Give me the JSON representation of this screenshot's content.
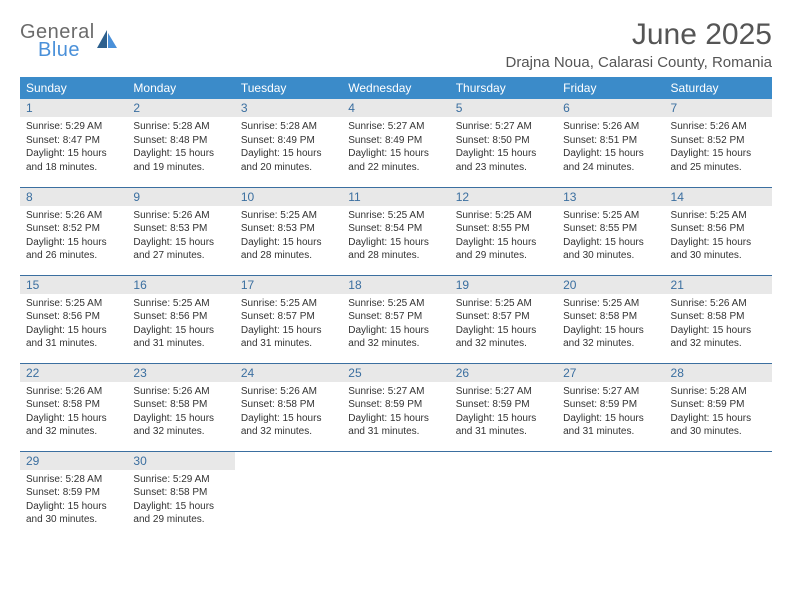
{
  "logo": {
    "word1": "General",
    "word2": "Blue"
  },
  "title": "June 2025",
  "location": "Drajna Noua, Calarasi County, Romania",
  "headerColor": "#3b8bc9",
  "ruleColor": "#3b6fa0",
  "dayNumBg": "#e8e8e8",
  "dayNames": [
    "Sunday",
    "Monday",
    "Tuesday",
    "Wednesday",
    "Thursday",
    "Friday",
    "Saturday"
  ],
  "weeks": [
    [
      {
        "n": "1",
        "sr": "Sunrise: 5:29 AM",
        "ss": "Sunset: 8:47 PM",
        "d1": "Daylight: 15 hours",
        "d2": "and 18 minutes."
      },
      {
        "n": "2",
        "sr": "Sunrise: 5:28 AM",
        "ss": "Sunset: 8:48 PM",
        "d1": "Daylight: 15 hours",
        "d2": "and 19 minutes."
      },
      {
        "n": "3",
        "sr": "Sunrise: 5:28 AM",
        "ss": "Sunset: 8:49 PM",
        "d1": "Daylight: 15 hours",
        "d2": "and 20 minutes."
      },
      {
        "n": "4",
        "sr": "Sunrise: 5:27 AM",
        "ss": "Sunset: 8:49 PM",
        "d1": "Daylight: 15 hours",
        "d2": "and 22 minutes."
      },
      {
        "n": "5",
        "sr": "Sunrise: 5:27 AM",
        "ss": "Sunset: 8:50 PM",
        "d1": "Daylight: 15 hours",
        "d2": "and 23 minutes."
      },
      {
        "n": "6",
        "sr": "Sunrise: 5:26 AM",
        "ss": "Sunset: 8:51 PM",
        "d1": "Daylight: 15 hours",
        "d2": "and 24 minutes."
      },
      {
        "n": "7",
        "sr": "Sunrise: 5:26 AM",
        "ss": "Sunset: 8:52 PM",
        "d1": "Daylight: 15 hours",
        "d2": "and 25 minutes."
      }
    ],
    [
      {
        "n": "8",
        "sr": "Sunrise: 5:26 AM",
        "ss": "Sunset: 8:52 PM",
        "d1": "Daylight: 15 hours",
        "d2": "and 26 minutes."
      },
      {
        "n": "9",
        "sr": "Sunrise: 5:26 AM",
        "ss": "Sunset: 8:53 PM",
        "d1": "Daylight: 15 hours",
        "d2": "and 27 minutes."
      },
      {
        "n": "10",
        "sr": "Sunrise: 5:25 AM",
        "ss": "Sunset: 8:53 PM",
        "d1": "Daylight: 15 hours",
        "d2": "and 28 minutes."
      },
      {
        "n": "11",
        "sr": "Sunrise: 5:25 AM",
        "ss": "Sunset: 8:54 PM",
        "d1": "Daylight: 15 hours",
        "d2": "and 28 minutes."
      },
      {
        "n": "12",
        "sr": "Sunrise: 5:25 AM",
        "ss": "Sunset: 8:55 PM",
        "d1": "Daylight: 15 hours",
        "d2": "and 29 minutes."
      },
      {
        "n": "13",
        "sr": "Sunrise: 5:25 AM",
        "ss": "Sunset: 8:55 PM",
        "d1": "Daylight: 15 hours",
        "d2": "and 30 minutes."
      },
      {
        "n": "14",
        "sr": "Sunrise: 5:25 AM",
        "ss": "Sunset: 8:56 PM",
        "d1": "Daylight: 15 hours",
        "d2": "and 30 minutes."
      }
    ],
    [
      {
        "n": "15",
        "sr": "Sunrise: 5:25 AM",
        "ss": "Sunset: 8:56 PM",
        "d1": "Daylight: 15 hours",
        "d2": "and 31 minutes."
      },
      {
        "n": "16",
        "sr": "Sunrise: 5:25 AM",
        "ss": "Sunset: 8:56 PM",
        "d1": "Daylight: 15 hours",
        "d2": "and 31 minutes."
      },
      {
        "n": "17",
        "sr": "Sunrise: 5:25 AM",
        "ss": "Sunset: 8:57 PM",
        "d1": "Daylight: 15 hours",
        "d2": "and 31 minutes."
      },
      {
        "n": "18",
        "sr": "Sunrise: 5:25 AM",
        "ss": "Sunset: 8:57 PM",
        "d1": "Daylight: 15 hours",
        "d2": "and 32 minutes."
      },
      {
        "n": "19",
        "sr": "Sunrise: 5:25 AM",
        "ss": "Sunset: 8:57 PM",
        "d1": "Daylight: 15 hours",
        "d2": "and 32 minutes."
      },
      {
        "n": "20",
        "sr": "Sunrise: 5:25 AM",
        "ss": "Sunset: 8:58 PM",
        "d1": "Daylight: 15 hours",
        "d2": "and 32 minutes."
      },
      {
        "n": "21",
        "sr": "Sunrise: 5:26 AM",
        "ss": "Sunset: 8:58 PM",
        "d1": "Daylight: 15 hours",
        "d2": "and 32 minutes."
      }
    ],
    [
      {
        "n": "22",
        "sr": "Sunrise: 5:26 AM",
        "ss": "Sunset: 8:58 PM",
        "d1": "Daylight: 15 hours",
        "d2": "and 32 minutes."
      },
      {
        "n": "23",
        "sr": "Sunrise: 5:26 AM",
        "ss": "Sunset: 8:58 PM",
        "d1": "Daylight: 15 hours",
        "d2": "and 32 minutes."
      },
      {
        "n": "24",
        "sr": "Sunrise: 5:26 AM",
        "ss": "Sunset: 8:58 PM",
        "d1": "Daylight: 15 hours",
        "d2": "and 32 minutes."
      },
      {
        "n": "25",
        "sr": "Sunrise: 5:27 AM",
        "ss": "Sunset: 8:59 PM",
        "d1": "Daylight: 15 hours",
        "d2": "and 31 minutes."
      },
      {
        "n": "26",
        "sr": "Sunrise: 5:27 AM",
        "ss": "Sunset: 8:59 PM",
        "d1": "Daylight: 15 hours",
        "d2": "and 31 minutes."
      },
      {
        "n": "27",
        "sr": "Sunrise: 5:27 AM",
        "ss": "Sunset: 8:59 PM",
        "d1": "Daylight: 15 hours",
        "d2": "and 31 minutes."
      },
      {
        "n": "28",
        "sr": "Sunrise: 5:28 AM",
        "ss": "Sunset: 8:59 PM",
        "d1": "Daylight: 15 hours",
        "d2": "and 30 minutes."
      }
    ],
    [
      {
        "n": "29",
        "sr": "Sunrise: 5:28 AM",
        "ss": "Sunset: 8:59 PM",
        "d1": "Daylight: 15 hours",
        "d2": "and 30 minutes."
      },
      {
        "n": "30",
        "sr": "Sunrise: 5:29 AM",
        "ss": "Sunset: 8:58 PM",
        "d1": "Daylight: 15 hours",
        "d2": "and 29 minutes."
      },
      null,
      null,
      null,
      null,
      null
    ]
  ]
}
